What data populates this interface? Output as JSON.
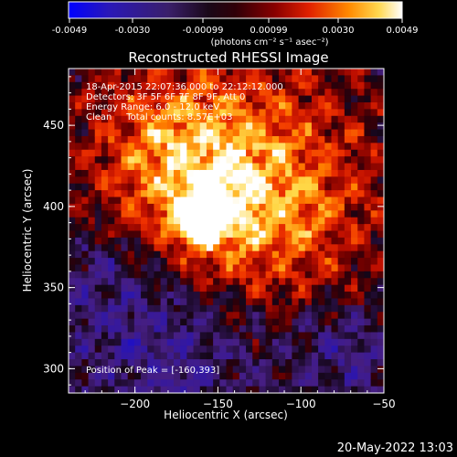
{
  "colorbar": {
    "ticks": [
      "-0.0049",
      "-0.0030",
      "-0.00099",
      "0.00099",
      "0.0030",
      "0.0049"
    ],
    "unit_label": "(photons cm⁻² s⁻¹ asec⁻²)",
    "colors": [
      "#0000ff",
      "#3a1f8c",
      "#200020",
      "#6a0000",
      "#d01a00",
      "#ff7a00",
      "#ffd040",
      "#ffffff"
    ]
  },
  "chart_data": {
    "type": "heatmap",
    "title": "Reconstructed RHESSI Image",
    "xlabel": "Heliocentric X (arcsec)",
    "ylabel": "Heliocentric Y (arcsec)",
    "xlim": [
      -240,
      -50
    ],
    "ylim": [
      285,
      485
    ],
    "xticks": [
      -200,
      -150,
      -100,
      -50
    ],
    "yticks": [
      300,
      350,
      400,
      450
    ],
    "value_range": [
      -0.0049,
      0.0049
    ],
    "peak": [
      -160,
      393
    ],
    "annotations": [
      "18-Apr-2015 22:07:36.000 to 22:12:12.000",
      "Detectors: 3F 5F 6F 7F 8F 9F, Att 0",
      "Energy Range: 6.0 - 12.0 keV",
      "Clean     Total counts: 8.57E+03"
    ],
    "peak_label": "Position of Peak = [-160,393]"
  },
  "footer": {
    "timestamp": "20-May-2022 13:03"
  }
}
